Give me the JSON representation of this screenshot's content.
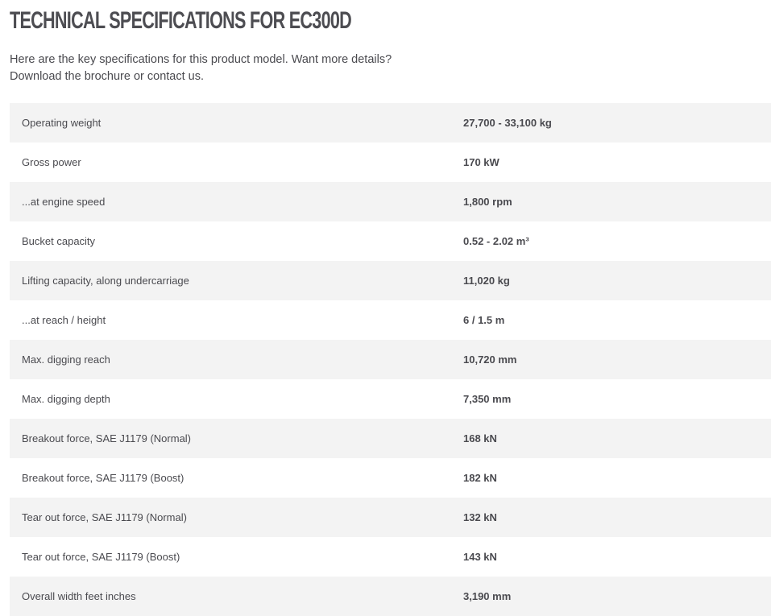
{
  "title": "TECHNICAL SPECIFICATIONS FOR EC300D",
  "intro": {
    "line1": "Here are the key specifications for this product model. Want more details?",
    "line2": "Download the brochure or contact us."
  },
  "specs": [
    {
      "label": "Operating weight",
      "value": "27,700 - 33,100 kg"
    },
    {
      "label": "Gross power",
      "value": "170 kW"
    },
    {
      "label": "...at engine speed",
      "value": "1,800 rpm"
    },
    {
      "label": "Bucket capacity",
      "value": "0.52 - 2.02 m³"
    },
    {
      "label": "Lifting capacity, along undercarriage",
      "value": "11,020 kg"
    },
    {
      "label": "...at reach / height",
      "value": "6 / 1.5 m"
    },
    {
      "label": "Max. digging reach",
      "value": "10,720 mm"
    },
    {
      "label": "Max. digging depth",
      "value": "7,350 mm"
    },
    {
      "label": "Breakout force, SAE J1179 (Normal)",
      "value": "168 kN"
    },
    {
      "label": "Breakout force, SAE J1179 (Boost)",
      "value": "182 kN"
    },
    {
      "label": "Tear out force, SAE J1179 (Normal)",
      "value": "132 kN"
    },
    {
      "label": "Tear out force, SAE J1179 (Boost)",
      "value": "143 kN"
    },
    {
      "label": "Overall width feet inches",
      "value": "3,190 mm"
    }
  ]
}
